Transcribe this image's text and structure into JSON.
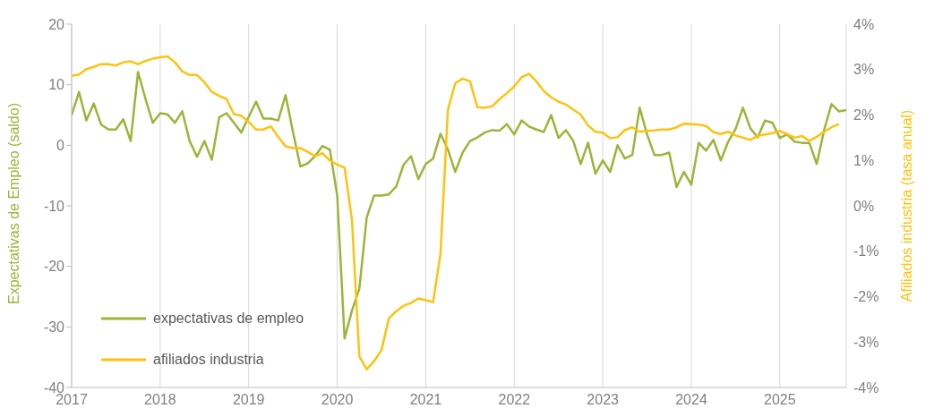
{
  "chart_data": {
    "type": "line",
    "ylabel": "Expectativas de Empleo (saldo)",
    "y2label": "Afiliados industria (tasa anual)",
    "x": [
      "2017-01",
      "2017-02",
      "2017-03",
      "2017-04",
      "2017-05",
      "2017-06",
      "2017-07",
      "2017-08",
      "2017-09",
      "2017-10",
      "2017-11",
      "2017-12",
      "2018-01",
      "2018-02",
      "2018-03",
      "2018-04",
      "2018-05",
      "2018-06",
      "2018-07",
      "2018-08",
      "2018-09",
      "2018-10",
      "2018-11",
      "2018-12",
      "2019-01",
      "2019-02",
      "2019-03",
      "2019-04",
      "2019-05",
      "2019-06",
      "2019-07",
      "2019-08",
      "2019-09",
      "2019-10",
      "2019-11",
      "2019-12",
      "2020-01",
      "2020-02",
      "2020-03",
      "2020-04",
      "2020-05",
      "2020-06",
      "2020-07",
      "2020-08",
      "2020-09",
      "2020-10",
      "2020-11",
      "2020-12",
      "2021-01",
      "2021-02",
      "2021-03",
      "2021-04",
      "2021-05",
      "2021-06",
      "2021-07",
      "2021-08",
      "2021-09",
      "2021-10",
      "2021-11",
      "2021-12",
      "2022-01",
      "2022-02",
      "2022-03",
      "2022-04",
      "2022-05",
      "2022-06",
      "2022-07",
      "2022-08",
      "2022-09",
      "2022-10",
      "2022-11",
      "2022-12",
      "2023-01",
      "2023-02",
      "2023-03",
      "2023-04",
      "2023-05",
      "2023-06",
      "2023-07",
      "2023-08",
      "2023-09",
      "2023-10",
      "2023-11",
      "2023-12",
      "2024-01",
      "2024-02",
      "2024-03",
      "2024-04",
      "2024-05",
      "2024-06",
      "2024-07",
      "2024-08",
      "2024-09",
      "2024-10",
      "2024-11",
      "2024-12",
      "2025-01",
      "2025-02",
      "2025-03",
      "2025-04",
      "2025-05",
      "2025-06",
      "2025-07",
      "2025-08",
      "2025-09",
      "2025-10"
    ],
    "series": [
      {
        "name": "expectativas de empleo",
        "color": "#9bb53a",
        "values": [
          5.0,
          8.8,
          4.1,
          6.9,
          3.4,
          2.6,
          2.6,
          4.3,
          0.7,
          12.1,
          7.7,
          3.7,
          5.3,
          5.1,
          3.7,
          5.6,
          0.7,
          -1.9,
          0.7,
          -2.4,
          4.6,
          5.3,
          3.7,
          2.1,
          4.7,
          7.2,
          4.4,
          4.4,
          4.1,
          8.3,
          2.2,
          -3.5,
          -3.0,
          -1.8,
          -0.1,
          -0.7,
          -8.3,
          -31.9,
          -27.3,
          -23.7,
          -11.9,
          -8.3,
          -8.3,
          -8.1,
          -6.8,
          -3.2,
          -1.8,
          -5.6,
          -3.1,
          -2.2,
          1.9,
          -0.7,
          -4.4,
          -1.2,
          0.7,
          1.3,
          2.1,
          2.5,
          2.4,
          3.5,
          1.8,
          4.1,
          3.1,
          2.6,
          2.2,
          5.0,
          1.2,
          2.5,
          0.7,
          -3.1,
          0.4,
          -4.7,
          -2.5,
          -4.4,
          0.0,
          -2.2,
          -1.6,
          6.2,
          1.8,
          -1.6,
          -1.6,
          -1.2,
          -6.9,
          -4.4,
          -6.5,
          0.4,
          -0.9,
          0.9,
          -2.5,
          0.6,
          2.7,
          6.2,
          2.8,
          1.3,
          4.1,
          3.7,
          1.2,
          1.8,
          0.6,
          0.4,
          0.4,
          -3.1,
          2.5,
          6.8,
          5.6,
          5.8
        ]
      },
      {
        "name": "afiliados industria",
        "color": "#ffc20e",
        "axis": "y2",
        "values": [
          2.86,
          2.89,
          3.01,
          3.06,
          3.12,
          3.12,
          3.09,
          3.16,
          3.18,
          3.12,
          3.19,
          3.24,
          3.27,
          3.29,
          3.16,
          2.96,
          2.88,
          2.88,
          2.72,
          2.51,
          2.42,
          2.35,
          2.02,
          1.98,
          1.85,
          1.68,
          1.68,
          1.75,
          1.52,
          1.31,
          1.27,
          1.27,
          1.19,
          1.09,
          1.16,
          1.0,
          0.91,
          0.84,
          -0.31,
          -3.32,
          -3.6,
          -3.42,
          -3.18,
          -2.48,
          -2.32,
          -2.2,
          -2.14,
          -2.04,
          -2.08,
          -2.12,
          -1.06,
          2.11,
          2.7,
          2.8,
          2.74,
          2.17,
          2.16,
          2.19,
          2.35,
          2.48,
          2.63,
          2.83,
          2.91,
          2.74,
          2.53,
          2.39,
          2.29,
          2.23,
          2.12,
          2.01,
          1.77,
          1.63,
          1.61,
          1.49,
          1.51,
          1.67,
          1.73,
          1.63,
          1.65,
          1.66,
          1.68,
          1.68,
          1.73,
          1.81,
          1.8,
          1.79,
          1.76,
          1.62,
          1.58,
          1.63,
          1.55,
          1.5,
          1.45,
          1.54,
          1.57,
          1.6,
          1.65,
          1.58,
          1.5,
          1.54,
          1.43,
          1.52,
          1.63,
          1.73,
          1.8,
          null
        ]
      }
    ],
    "xlim": [
      "2017-01",
      "2025-10"
    ],
    "xticks": [
      "2017",
      "2018",
      "2019",
      "2020",
      "2021",
      "2022",
      "2023",
      "2024",
      "2025"
    ],
    "ylim": [
      -40,
      20
    ],
    "yticks": [
      -40,
      -30,
      -20,
      -10,
      0,
      10,
      20
    ],
    "y2lim": [
      -4,
      4
    ],
    "y2ticks": [
      {
        "value": -4,
        "label": "-4%"
      },
      {
        "value": -3,
        "label": "-3%"
      },
      {
        "value": -2,
        "label": "-2%"
      },
      {
        "value": -1,
        "label": "-1%"
      },
      {
        "value": 0,
        "label": "0%"
      },
      {
        "value": 1,
        "label": "1%"
      },
      {
        "value": 2,
        "label": "2%"
      },
      {
        "value": 3,
        "label": "3%"
      },
      {
        "value": 4,
        "label": "4%"
      }
    ],
    "grid": "x",
    "legend": "bottom left",
    "marker": "none",
    "line_style": "solid"
  }
}
